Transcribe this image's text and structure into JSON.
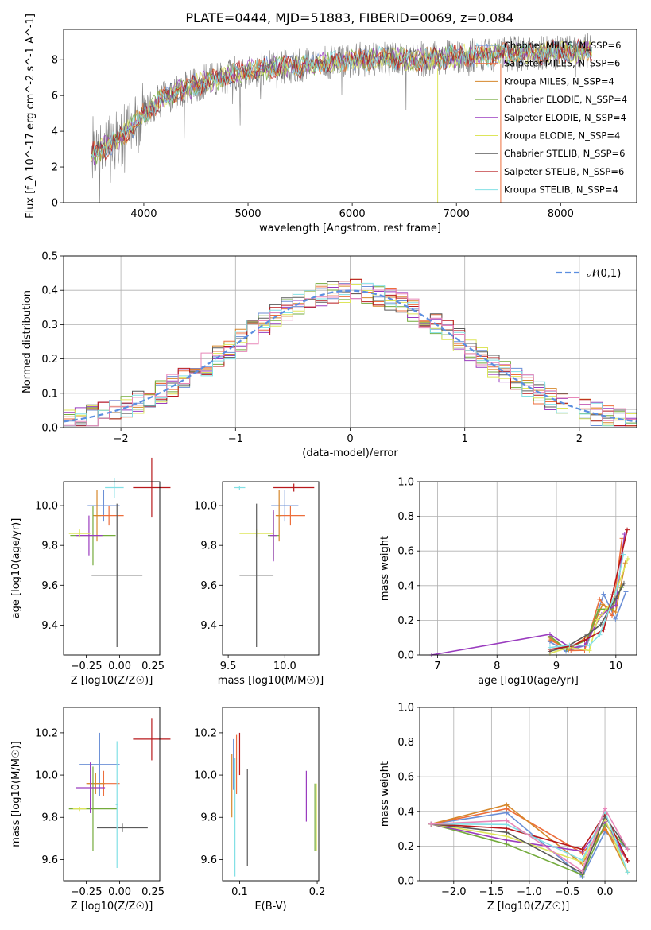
{
  "title": "PLATE=0444, MJD=51883, FIBERID=0069, z=0.084",
  "colors": [
    "#6b8fd6",
    "#ed6e3b",
    "#d6872b",
    "#74ab3c",
    "#9a3cbf",
    "#dde55a",
    "#5a5a5a",
    "#b8191c",
    "#82e0e5",
    "#e887b9",
    "#7f7f7f"
  ],
  "model_names": [
    "Chabrier MILES, N_SSP=6",
    "Salpeter MILES, N_SSP=6",
    "Kroupa MILES, N_SSP=4",
    "Chabrier ELODIE, N_SSP=4",
    "Salpeter ELODIE, N_SSP=4",
    "Kroupa ELODIE, N_SSP=4",
    "Chabrier STELIB, N_SSP=6",
    "Salpeter STELIB, N_SSP=6",
    "Kroupa STELIB, N_SSP=4"
  ],
  "panels": {
    "spectrum": {
      "ylabel": "Flux [f_λ 10^-17 erg cm^-2 s^-1 A^-1]",
      "xlabel": "wavelength [Angstrom, rest frame]",
      "xticks": [
        "4000",
        "5000",
        "6000",
        "7000",
        "8000"
      ],
      "yticks": [
        "0",
        "2",
        "4",
        "6",
        "8"
      ]
    },
    "residuals": {
      "ylabel": "Normed distribution",
      "xlabel": "(data-model)/error",
      "legend": "𝒩(0,1)",
      "xticks": [
        "−2",
        "−1",
        "0",
        "1",
        "2"
      ],
      "yticks": [
        "0.0",
        "0.1",
        "0.2",
        "0.3",
        "0.4",
        "0.5"
      ]
    },
    "age_z": {
      "ylabel": "age  [log10(age/yr)]",
      "xlabel": "Z [log10(Z/Z☉)]",
      "xticks": [
        "−0.25",
        "0.00",
        "0.25"
      ],
      "yticks": [
        "9.4",
        "9.6",
        "9.8",
        "10.0"
      ]
    },
    "age_mass": {
      "xlabel": "mass [log10(M/M☉)]",
      "xticks": [
        "9.5",
        "10.0"
      ],
      "yticks": [
        "9.4",
        "9.6",
        "9.8",
        "10.0"
      ]
    },
    "mw_age": {
      "ylabel": "mass weight",
      "xlabel": "age  [log10(age/yr)]",
      "xticks": [
        "7",
        "8",
        "9",
        "10"
      ],
      "yticks": [
        "0.0",
        "0.2",
        "0.4",
        "0.6",
        "0.8",
        "1.0"
      ]
    },
    "mass_z": {
      "ylabel": "mass [log10(M/M☉)]",
      "xlabel": "Z [log10(Z/Z☉)]",
      "xticks": [
        "−0.25",
        "0.00",
        "0.25"
      ],
      "yticks": [
        "9.6",
        "9.8",
        "10.0",
        "10.2"
      ]
    },
    "mass_ebv": {
      "xlabel": "E(B-V)",
      "xticks": [
        "0.1",
        "0.2"
      ],
      "yticks": [
        "9.6",
        "9.8",
        "10.0",
        "10.2"
      ]
    },
    "mw_z": {
      "ylabel": "mass weight",
      "xlabel": "Z [log10(Z/Z☉)]",
      "xticks": [
        "−2.0",
        "−1.5",
        "−1.0",
        "−0.5",
        "0.0"
      ],
      "yticks": [
        "0.0",
        "0.2",
        "0.4",
        "0.6",
        "0.8",
        "1.0"
      ]
    }
  },
  "chart_data": [
    {
      "type": "line",
      "panel": "spectrum",
      "title": "PLATE=0444, MJD=51883, FIBERID=0069, z=0.084",
      "xlabel": "wavelength [Angstrom, rest frame]",
      "ylabel": "Flux [f_λ 10^-17 erg cm^-2 s^-1 A^-1]",
      "xlim": [
        3230,
        8730
      ],
      "ylim": [
        0,
        9.7
      ],
      "legend_position": "right",
      "series": [
        {
          "name": "Chabrier MILES, N_SSP=6"
        },
        {
          "name": "Salpeter MILES, N_SSP=6"
        },
        {
          "name": "Kroupa MILES, N_SSP=4"
        },
        {
          "name": "Chabrier ELODIE, N_SSP=4"
        },
        {
          "name": "Salpeter ELODIE, N_SSP=4"
        },
        {
          "name": "Kroupa ELODIE, N_SSP=4"
        },
        {
          "name": "Chabrier STELIB, N_SSP=6"
        },
        {
          "name": "Salpeter STELIB, N_SSP=6"
        },
        {
          "name": "Kroupa STELIB, N_SSP=4"
        }
      ],
      "continuum": {
        "x": [
          3500,
          3700,
          3900,
          4000,
          4200,
          4500,
          4800,
          5000,
          5300,
          5600,
          6000,
          6300,
          6600,
          7000,
          7400,
          7800,
          8300
        ],
        "y": [
          2.7,
          3.3,
          4.3,
          5.0,
          5.9,
          6.6,
          7.1,
          7.4,
          7.6,
          7.7,
          8.0,
          8.1,
          8.0,
          8.2,
          8.3,
          8.4,
          8.5
        ]
      }
    },
    {
      "type": "line",
      "panel": "residuals",
      "xlabel": "(data-model)/error",
      "ylabel": "Normed distribution",
      "xlim": [
        -2.5,
        2.5
      ],
      "ylim": [
        0,
        0.5
      ],
      "grid": true,
      "legend_position": "top-right",
      "series": [
        {
          "name": "𝒩(0,1)",
          "mean": 0,
          "sigma": 1
        }
      ],
      "histogram_bin_width": 0.1
    },
    {
      "type": "scatter",
      "panel": "age_z",
      "xlabel": "Z [log10(Z/Z☉)]",
      "ylabel": "age  [log10(age/yr)]",
      "xlim": [
        -0.42,
        0.3
      ],
      "ylim": [
        9.25,
        10.12
      ],
      "points": [
        {
          "x": -0.12,
          "y": 10.0,
          "xerr": 0.12,
          "yerr": 0.08
        },
        {
          "x": -0.08,
          "y": 9.95,
          "xerr": 0.11,
          "yerr": 0.05
        },
        {
          "x": -0.17,
          "y": 9.95,
          "xerr": 0.03,
          "yerr": 0.13
        },
        {
          "x": -0.2,
          "y": 9.85,
          "xerr": 0.17,
          "yerr": 0.15
        },
        {
          "x": -0.23,
          "y": 9.85,
          "xerr": 0.1,
          "yerr": 0.1
        },
        {
          "x": -0.3,
          "y": 9.86,
          "xerr": 0.08,
          "yerr": 0.02
        },
        {
          "x": -0.02,
          "y": 9.65,
          "xerr": 0.19,
          "yerr": 0.36
        },
        {
          "x": 0.24,
          "y": 10.09,
          "xerr": 0.14,
          "yerr": 0.15
        },
        {
          "x": -0.04,
          "y": 10.09,
          "xerr": 0.07,
          "yerr": 0.05
        }
      ]
    },
    {
      "type": "scatter",
      "panel": "age_mass",
      "xlabel": "mass [log10(M/M☉)]",
      "xlim": [
        9.45,
        10.3
      ],
      "ylim": [
        9.25,
        10.12
      ],
      "points": [
        {
          "x": 10.0,
          "y": 10.0,
          "xerr": 0.12,
          "yerr": 0.08
        },
        {
          "x": 10.05,
          "y": 9.95,
          "xerr": 0.13,
          "yerr": 0.05
        },
        {
          "x": 9.95,
          "y": 9.95,
          "xerr": 0.02,
          "yerr": 0.13
        },
        {
          "x": 9.9,
          "y": 9.85,
          "xerr": 0.05,
          "yerr": 0.12
        },
        {
          "x": 9.9,
          "y": 9.85,
          "xerr": 0.03,
          "yerr": 0.13
        },
        {
          "x": 9.75,
          "y": 9.86,
          "xerr": 0.15,
          "yerr": 0.02
        },
        {
          "x": 9.75,
          "y": 9.65,
          "xerr": 0.15,
          "yerr": 0.36
        },
        {
          "x": 10.08,
          "y": 10.09,
          "xerr": 0.18,
          "yerr": 0.02
        },
        {
          "x": 9.6,
          "y": 10.09,
          "xerr": 0.05,
          "yerr": 0.01
        }
      ]
    },
    {
      "type": "line",
      "panel": "mw_age",
      "xlabel": "age  [log10(age/yr)]",
      "ylabel": "mass weight",
      "xlim": [
        6.7,
        10.35
      ],
      "ylim": [
        0,
        1.0
      ],
      "grid": true
    },
    {
      "type": "scatter",
      "panel": "mass_z",
      "xlabel": "Z [log10(Z/Z☉)]",
      "ylabel": "mass [log10(M/M☉)]",
      "xlim": [
        -0.42,
        0.3
      ],
      "ylim": [
        9.5,
        10.32
      ],
      "points": [
        {
          "x": -0.15,
          "y": 10.05,
          "xerr": 0.15,
          "yerr": 0.15
        },
        {
          "x": -0.12,
          "y": 9.96,
          "xerr": 0.12,
          "yerr": 0.06
        },
        {
          "x": -0.18,
          "y": 9.96,
          "xerr": 0.07,
          "yerr": 0.05
        },
        {
          "x": -0.2,
          "y": 9.84,
          "xerr": 0.18,
          "yerr": 0.2
        },
        {
          "x": -0.22,
          "y": 9.94,
          "xerr": 0.11,
          "yerr": 0.12
        },
        {
          "x": -0.3,
          "y": 9.84,
          "xerr": 0.05,
          "yerr": 0.01
        },
        {
          "x": 0.02,
          "y": 9.75,
          "xerr": 0.19,
          "yerr": 0.02
        },
        {
          "x": 0.24,
          "y": 10.17,
          "xerr": 0.14,
          "yerr": 0.1
        },
        {
          "x": -0.02,
          "y": 9.86,
          "xerr": 0.01,
          "yerr": 0.3
        }
      ]
    },
    {
      "type": "scatter",
      "panel": "mass_ebv",
      "xlabel": "E(B-V)",
      "xlim": [
        0.078,
        0.202
      ],
      "ylim": [
        9.5,
        10.32
      ],
      "points": [
        {
          "x": 0.092,
          "y": 10.05,
          "xerr": 0,
          "yerr": 0.12
        },
        {
          "x": 0.096,
          "y": 10.05,
          "xerr": 0,
          "yerr": 0.14
        },
        {
          "x": 0.09,
          "y": 9.95,
          "xerr": 0,
          "yerr": 0.15
        },
        {
          "x": 0.197,
          "y": 9.8,
          "xerr": 0,
          "yerr": 0.16
        },
        {
          "x": 0.186,
          "y": 9.9,
          "xerr": 0,
          "yerr": 0.12
        },
        {
          "x": 0.199,
          "y": 9.8,
          "xerr": 0,
          "yerr": 0.16
        },
        {
          "x": 0.11,
          "y": 9.8,
          "xerr": 0,
          "yerr": 0.23
        },
        {
          "x": 0.1,
          "y": 10.1,
          "xerr": 0,
          "yerr": 0.1
        },
        {
          "x": 0.094,
          "y": 9.8,
          "xerr": 0,
          "yerr": 0.28
        }
      ]
    },
    {
      "type": "line",
      "panel": "mw_z",
      "xlabel": "Z [log10(Z/Z☉)]",
      "ylabel": "mass weight",
      "xlim": [
        -2.45,
        0.42
      ],
      "ylim": [
        0,
        1.0
      ],
      "grid": true
    }
  ]
}
